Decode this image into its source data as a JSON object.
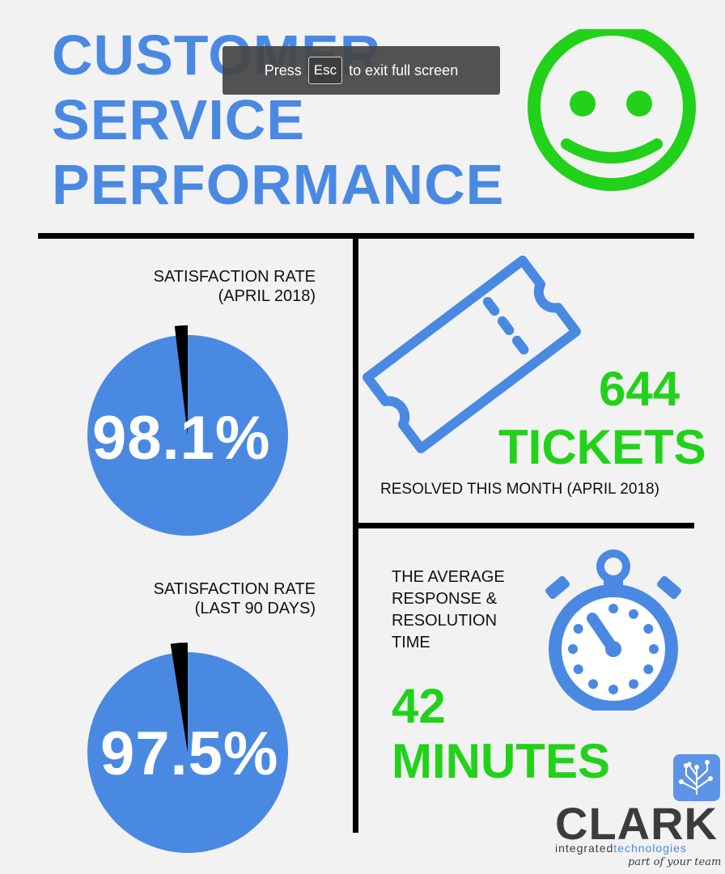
{
  "title": {
    "line1": "CUSTOMER",
    "line2": "SERVICE",
    "line3": "PERFORMANCE"
  },
  "fullscreen_banner": {
    "press": "Press",
    "key": "Esc",
    "suffix": "to exit full screen"
  },
  "satisfaction_april": {
    "label_line1": "SATISFACTION RATE",
    "label_line2": "(APRIL 2018)",
    "percent_text": "98.1%",
    "value": 98.1
  },
  "satisfaction_90": {
    "label_line1": "SATISFACTION RATE",
    "label_line2": "(LAST 90 DAYS)",
    "percent_text": "97.5%",
    "value": 97.5
  },
  "tickets": {
    "count": "644",
    "unit": "TICKETS",
    "caption": "RESOLVED THIS MONTH (APRIL 2018)"
  },
  "response": {
    "label_line1": "THE AVERAGE",
    "label_line2": "RESPONSE &",
    "label_line3": "RESOLUTION",
    "label_line4": "TIME",
    "value": "42",
    "unit": "MINUTES"
  },
  "logo": {
    "name": "CLARK",
    "sub_plain": "integrated",
    "sub_blue": "technologies",
    "tagline": "part of your team"
  },
  "colors": {
    "blue": "#4a89e2",
    "green": "#22d11a",
    "black": "#000000",
    "background": "#f2f2f2"
  },
  "icons": [
    "smiley-icon",
    "ticket-icon",
    "stopwatch-icon",
    "tree-circuit-icon"
  ]
}
